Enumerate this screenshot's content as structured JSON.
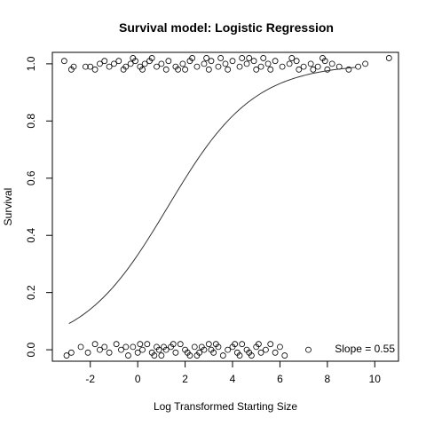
{
  "chart_data": {
    "type": "scatter",
    "title": "Survival model: Logistic Regression",
    "xlabel": "Log Transformed Starting Size",
    "ylabel": "Survival",
    "xlim": [
      -3.6,
      11.0
    ],
    "ylim": [
      -0.04,
      1.04
    ],
    "x_ticks": [
      -2,
      0,
      2,
      4,
      6,
      8,
      10
    ],
    "y_ticks": [
      0.0,
      0.2,
      0.4,
      0.6,
      0.8,
      1.0
    ],
    "x_tick_labels": [
      "-2",
      "0",
      "2",
      "4",
      "6",
      "8",
      "10"
    ],
    "y_tick_labels": [
      "0.0",
      "0.2",
      "0.4",
      "0.6",
      "0.8",
      "1.0"
    ],
    "grid": false,
    "annotation": "Slope = 0.55",
    "annotation_position": "bottom-right",
    "marker": "open-circle",
    "fit_curve": {
      "model": "logistic",
      "slope": 0.55,
      "intercept": -0.7,
      "x_range": [
        -2.9,
        9.2
      ]
    },
    "series": [
      {
        "points": [
          [
            -3.1,
            1.01
          ],
          [
            -2.8,
            0.98
          ],
          [
            -2.7,
            0.99
          ],
          [
            -2.2,
            0.99
          ],
          [
            -2.0,
            0.99
          ],
          [
            -1.8,
            0.98
          ],
          [
            -1.6,
            1.0
          ],
          [
            -1.4,
            1.01
          ],
          [
            -1.2,
            0.99
          ],
          [
            -1.0,
            1.0
          ],
          [
            -0.8,
            1.01
          ],
          [
            -0.5,
            0.99
          ],
          [
            -0.3,
            1.0
          ],
          [
            -0.1,
            1.01
          ],
          [
            0.1,
            0.99
          ],
          [
            0.3,
            1.0
          ],
          [
            0.5,
            1.01
          ],
          [
            0.8,
            0.99
          ],
          [
            1.0,
            1.0
          ],
          [
            1.3,
            1.01
          ],
          [
            1.6,
            0.99
          ],
          [
            1.9,
            1.0
          ],
          [
            2.2,
            1.01
          ],
          [
            2.5,
            0.99
          ],
          [
            2.8,
            1.0
          ],
          [
            3.1,
            1.01
          ],
          [
            3.4,
            0.99
          ],
          [
            3.7,
            1.0
          ],
          [
            4.0,
            1.01
          ],
          [
            4.3,
            0.99
          ],
          [
            4.6,
            1.0
          ],
          [
            4.9,
            1.01
          ],
          [
            5.2,
            0.99
          ],
          [
            5.5,
            1.0
          ],
          [
            5.8,
            1.01
          ],
          [
            6.1,
            0.99
          ],
          [
            6.4,
            1.0
          ],
          [
            6.7,
            1.01
          ],
          [
            7.0,
            0.99
          ],
          [
            7.3,
            1.0
          ],
          [
            7.6,
            0.99
          ],
          [
            7.9,
            1.01
          ],
          [
            8.2,
            1.0
          ],
          [
            8.5,
            0.99
          ],
          [
            8.9,
            0.98
          ],
          [
            9.3,
            0.99
          ],
          [
            9.6,
            1.0
          ],
          [
            10.6,
            1.02
          ],
          [
            -0.6,
            0.98
          ],
          [
            0.6,
            1.02
          ],
          [
            1.7,
            0.98
          ],
          [
            2.9,
            1.02
          ],
          [
            3.8,
            0.98
          ],
          [
            4.7,
            1.02
          ],
          [
            5.6,
            0.98
          ],
          [
            6.5,
            1.02
          ],
          [
            7.4,
            0.98
          ],
          [
            8.0,
            0.98
          ],
          [
            1.2,
            0.98
          ],
          [
            2.3,
            1.02
          ],
          [
            3.5,
            1.02
          ],
          [
            5.0,
            0.98
          ],
          [
            0.2,
            0.98
          ],
          [
            6.8,
            0.98
          ],
          [
            7.8,
            1.02
          ],
          [
            -0.2,
            1.02
          ],
          [
            4.4,
            1.02
          ],
          [
            2.0,
            0.98
          ],
          [
            3.0,
            0.98
          ],
          [
            5.3,
            1.02
          ]
        ]
      },
      {
        "points": [
          [
            -3.0,
            -0.02
          ],
          [
            -2.8,
            -0.01
          ],
          [
            -2.4,
            0.01
          ],
          [
            -2.1,
            -0.01
          ],
          [
            -1.8,
            0.02
          ],
          [
            -1.6,
            0.0
          ],
          [
            -1.4,
            0.01
          ],
          [
            -1.2,
            -0.01
          ],
          [
            -0.9,
            0.02
          ],
          [
            -0.7,
            0.0
          ],
          [
            -0.4,
            -0.02
          ],
          [
            -0.2,
            0.01
          ],
          [
            0.0,
            -0.01
          ],
          [
            0.2,
            0.0
          ],
          [
            0.4,
            0.02
          ],
          [
            0.6,
            -0.01
          ],
          [
            0.8,
            0.01
          ],
          [
            1.0,
            -0.02
          ],
          [
            1.2,
            0.0
          ],
          [
            1.4,
            0.01
          ],
          [
            1.6,
            -0.01
          ],
          [
            1.8,
            0.02
          ],
          [
            2.0,
            0.0
          ],
          [
            2.2,
            -0.02
          ],
          [
            2.4,
            0.01
          ],
          [
            2.6,
            -0.01
          ],
          [
            2.8,
            0.0
          ],
          [
            3.0,
            0.02
          ],
          [
            3.2,
            -0.01
          ],
          [
            3.4,
            0.01
          ],
          [
            3.6,
            -0.02
          ],
          [
            3.8,
            0.0
          ],
          [
            4.0,
            0.01
          ],
          [
            4.2,
            -0.01
          ],
          [
            4.4,
            0.02
          ],
          [
            4.6,
            0.0
          ],
          [
            4.8,
            -0.02
          ],
          [
            5.0,
            0.01
          ],
          [
            5.2,
            -0.01
          ],
          [
            5.4,
            0.0
          ],
          [
            5.6,
            0.02
          ],
          [
            5.8,
            -0.01
          ],
          [
            6.0,
            0.01
          ],
          [
            6.2,
            -0.02
          ],
          [
            7.2,
            0.0
          ],
          [
            0.1,
            0.02
          ],
          [
            0.7,
            -0.02
          ],
          [
            1.5,
            0.02
          ],
          [
            2.5,
            -0.02
          ],
          [
            3.3,
            0.02
          ],
          [
            4.3,
            -0.02
          ],
          [
            5.1,
            0.02
          ],
          [
            1.1,
            0.01
          ],
          [
            2.1,
            -0.01
          ],
          [
            3.1,
            0.0
          ],
          [
            4.1,
            0.02
          ],
          [
            -0.5,
            0.01
          ],
          [
            0.9,
            0.0
          ],
          [
            2.7,
            0.01
          ],
          [
            4.7,
            -0.01
          ]
        ]
      }
    ]
  }
}
